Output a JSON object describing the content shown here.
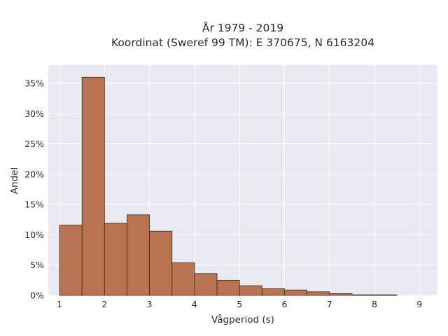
{
  "chart_data": {
    "type": "bar",
    "title": [
      "År 1979 - 2019",
      "Koordinat (Sweref 99 TM): E 370675, N 6163204"
    ],
    "xlabel": "Vågperiod (s)",
    "ylabel": "Andel",
    "xlim": [
      0.75,
      9.4
    ],
    "ylim": [
      0,
      0.38
    ],
    "x_ticks": [
      {
        "value": 1,
        "label": "1"
      },
      {
        "value": 2,
        "label": "2"
      },
      {
        "value": 3,
        "label": "3"
      },
      {
        "value": 4,
        "label": "4"
      },
      {
        "value": 5,
        "label": "5"
      },
      {
        "value": 6,
        "label": "6"
      },
      {
        "value": 7,
        "label": "7"
      },
      {
        "value": 8,
        "label": "8"
      },
      {
        "value": 9,
        "label": "9"
      }
    ],
    "y_ticks": [
      {
        "value": 0,
        "label": "0%"
      },
      {
        "value": 0.05,
        "label": "5%"
      },
      {
        "value": 0.1,
        "label": "10%"
      },
      {
        "value": 0.15,
        "label": "15%"
      },
      {
        "value": 0.2,
        "label": "20%"
      },
      {
        "value": 0.25,
        "label": "25%"
      },
      {
        "value": 0.3,
        "label": "30%"
      },
      {
        "value": 0.35,
        "label": "35%"
      }
    ],
    "bin_width": 0.5,
    "bins": [
      {
        "x_start": 1.0,
        "value": 0.116
      },
      {
        "x_start": 1.5,
        "value": 0.36
      },
      {
        "x_start": 2.0,
        "value": 0.119
      },
      {
        "x_start": 2.5,
        "value": 0.133
      },
      {
        "x_start": 3.0,
        "value": 0.106
      },
      {
        "x_start": 3.5,
        "value": 0.054
      },
      {
        "x_start": 4.0,
        "value": 0.036
      },
      {
        "x_start": 4.5,
        "value": 0.025
      },
      {
        "x_start": 5.0,
        "value": 0.016
      },
      {
        "x_start": 5.5,
        "value": 0.011
      },
      {
        "x_start": 6.0,
        "value": 0.009
      },
      {
        "x_start": 6.5,
        "value": 0.006
      },
      {
        "x_start": 7.0,
        "value": 0.003
      },
      {
        "x_start": 7.5,
        "value": 0.001
      },
      {
        "x_start": 8.0,
        "value": 0.001
      }
    ],
    "grid": true,
    "colors": {
      "bar": "#b87451",
      "bar_edge": "#3a2a20",
      "plot_background": "#e8e9f1",
      "grid": "#ffffff"
    }
  }
}
